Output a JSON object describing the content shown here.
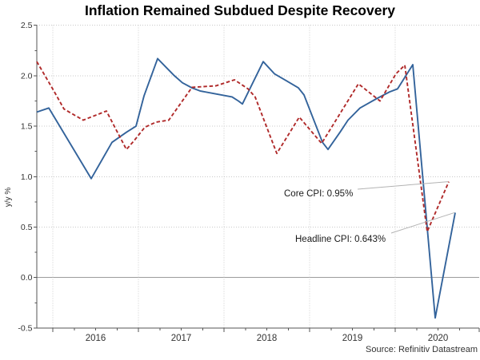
{
  "chart_data": {
    "type": "line",
    "title": "Inflation Remained Subdued Despite Recovery",
    "ylabel": "y/y %",
    "xlabel": "",
    "source": "Source: Refinitiv Datastream",
    "ylim": [
      -0.5,
      2.5
    ],
    "xlim": [
      2015.81,
      2020.98
    ],
    "grid": "dotted light horizontal and vertical gridlines; solid gray line at zero",
    "legend_position": "none (inline leader-line annotations)",
    "y_tick_labels": [
      "2.5",
      "2.0",
      "1.5",
      "1.0",
      "0.5",
      "0.0",
      "-0.5"
    ],
    "x_tick_labels": [
      "2016",
      "2017",
      "2018",
      "2019",
      "2020"
    ],
    "x_minor_tick_unit": "quarter",
    "series": [
      {
        "name": "Headline CPI",
        "color": "#33639b",
        "style": "solid",
        "end_value": 0.643,
        "points": [
          [
            2015.813,
            1.64
          ],
          [
            2015.953,
            1.68
          ],
          [
            2016.159,
            1.39
          ],
          [
            2016.449,
            0.98
          ],
          [
            2016.692,
            1.34
          ],
          [
            2016.86,
            1.44
          ],
          [
            2016.972,
            1.5
          ],
          [
            2017.065,
            1.8
          ],
          [
            2017.224,
            2.17
          ],
          [
            2017.421,
            2.0
          ],
          [
            2017.514,
            1.93
          ],
          [
            2017.626,
            1.88
          ],
          [
            2017.72,
            1.85
          ],
          [
            2017.907,
            1.82
          ],
          [
            2018.094,
            1.79
          ],
          [
            2018.168,
            1.75
          ],
          [
            2018.215,
            1.72
          ],
          [
            2018.458,
            2.14
          ],
          [
            2018.589,
            2.02
          ],
          [
            2018.729,
            1.95
          ],
          [
            2018.869,
            1.88
          ],
          [
            2018.935,
            1.81
          ],
          [
            2019.15,
            1.34
          ],
          [
            2019.215,
            1.27
          ],
          [
            2019.355,
            1.44
          ],
          [
            2019.449,
            1.56
          ],
          [
            2019.589,
            1.68
          ],
          [
            2019.776,
            1.77
          ],
          [
            2019.935,
            1.84
          ],
          [
            2020.028,
            1.87
          ],
          [
            2020.206,
            2.11
          ],
          [
            2020.467,
            -0.4
          ],
          [
            2020.701,
            0.643
          ]
        ]
      },
      {
        "name": "Core CPI",
        "color": "#b02a2a",
        "style": "dashed",
        "end_value": 0.95,
        "points": [
          [
            2015.813,
            2.14
          ],
          [
            2016.019,
            1.84
          ],
          [
            2016.131,
            1.67
          ],
          [
            2016.355,
            1.56
          ],
          [
            2016.626,
            1.65
          ],
          [
            2016.86,
            1.27
          ],
          [
            2016.953,
            1.36
          ],
          [
            2017.075,
            1.49
          ],
          [
            2017.206,
            1.54
          ],
          [
            2017.355,
            1.56
          ],
          [
            2017.626,
            1.885
          ],
          [
            2017.907,
            1.9
          ],
          [
            2018.122,
            1.96
          ],
          [
            2018.28,
            1.87
          ],
          [
            2018.364,
            1.79
          ],
          [
            2018.617,
            1.23
          ],
          [
            2018.879,
            1.59
          ],
          [
            2019.14,
            1.33
          ],
          [
            2019.308,
            1.56
          ],
          [
            2019.57,
            1.92
          ],
          [
            2019.822,
            1.75
          ],
          [
            2020.009,
            2.02
          ],
          [
            2020.112,
            2.105
          ],
          [
            2020.374,
            0.455
          ],
          [
            2020.626,
            0.95
          ]
        ]
      }
    ],
    "annotations": [
      {
        "text": "Core CPI: 0.95%",
        "series": "Core CPI"
      },
      {
        "text": "Headline CPI: 0.643%",
        "series": "Headline CPI"
      }
    ],
    "colors": {
      "headline_line": "#33639b",
      "core_line": "#b02a2a",
      "gridline": "#c9c9c9",
      "zero_line": "#9c9c9c",
      "axis": "#555555",
      "leader_line": "#b3b3b3"
    }
  }
}
